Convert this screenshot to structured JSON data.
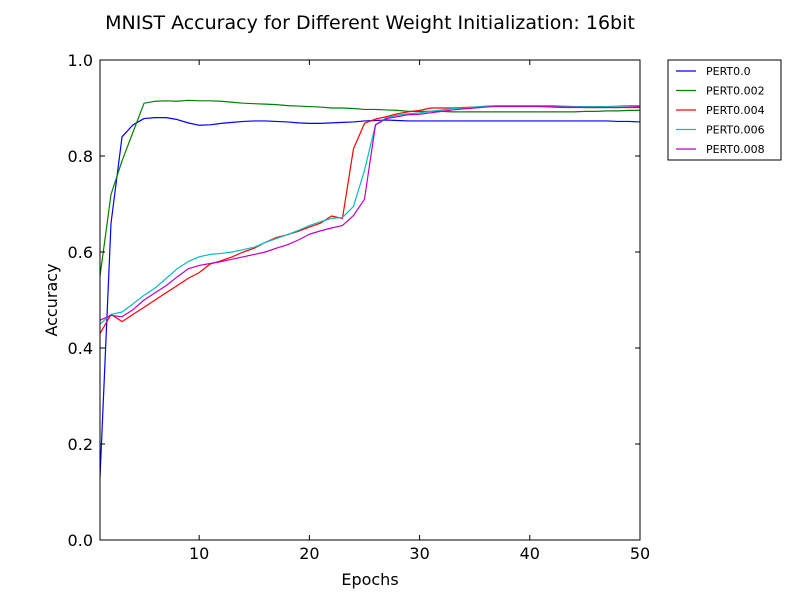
{
  "chart_data": {
    "type": "line",
    "title": "MNIST Accuracy for Different Weight Initialization: 16bit",
    "xlabel": "Epochs",
    "ylabel": "Accuracy",
    "xlim": [
      1,
      50
    ],
    "ylim": [
      0.0,
      1.0
    ],
    "xticks": [
      10,
      20,
      30,
      40,
      50
    ],
    "yticks": [
      "0.0",
      "0.2",
      "0.4",
      "0.6",
      "0.8",
      "1.0"
    ],
    "grid": false,
    "legend_position": "outside-top-right",
    "x": [
      1,
      2,
      3,
      4,
      5,
      6,
      7,
      8,
      9,
      10,
      11,
      12,
      13,
      14,
      15,
      16,
      17,
      18,
      19,
      20,
      21,
      22,
      23,
      24,
      25,
      26,
      27,
      28,
      29,
      30,
      31,
      32,
      33,
      34,
      35,
      36,
      37,
      38,
      39,
      40,
      41,
      42,
      43,
      44,
      45,
      46,
      47,
      48,
      49,
      50
    ],
    "series": [
      {
        "name": "PERT0.0",
        "color": "#0000ff",
        "values": [
          0.13,
          0.66,
          0.84,
          0.865,
          0.878,
          0.88,
          0.88,
          0.876,
          0.869,
          0.864,
          0.865,
          0.868,
          0.87,
          0.872,
          0.873,
          0.873,
          0.872,
          0.871,
          0.869,
          0.868,
          0.868,
          0.869,
          0.87,
          0.871,
          0.873,
          0.874,
          0.875,
          0.874,
          0.873,
          0.873,
          0.873,
          0.873,
          0.873,
          0.873,
          0.873,
          0.873,
          0.873,
          0.873,
          0.873,
          0.873,
          0.873,
          0.873,
          0.873,
          0.873,
          0.873,
          0.873,
          0.873,
          0.872,
          0.872,
          0.871
        ]
      },
      {
        "name": "PERT0.002",
        "color": "#008000",
        "values": [
          0.55,
          0.72,
          0.79,
          0.85,
          0.91,
          0.914,
          0.915,
          0.914,
          0.916,
          0.915,
          0.915,
          0.914,
          0.912,
          0.91,
          0.909,
          0.908,
          0.907,
          0.905,
          0.904,
          0.903,
          0.902,
          0.9,
          0.9,
          0.899,
          0.897,
          0.897,
          0.896,
          0.895,
          0.893,
          0.893,
          0.893,
          0.893,
          0.892,
          0.892,
          0.892,
          0.892,
          0.892,
          0.892,
          0.892,
          0.892,
          0.892,
          0.892,
          0.892,
          0.892,
          0.893,
          0.893,
          0.894,
          0.894,
          0.895,
          0.895
        ]
      },
      {
        "name": "PERT0.004",
        "color": "#ff0000",
        "values": [
          0.43,
          0.47,
          0.455,
          0.47,
          0.485,
          0.5,
          0.515,
          0.53,
          0.545,
          0.557,
          0.575,
          0.582,
          0.59,
          0.6,
          0.608,
          0.62,
          0.63,
          0.636,
          0.643,
          0.652,
          0.66,
          0.675,
          0.67,
          0.815,
          0.868,
          0.877,
          0.882,
          0.888,
          0.892,
          0.895,
          0.9,
          0.9,
          0.9,
          0.901,
          0.902,
          0.903,
          0.904,
          0.905,
          0.905,
          0.904,
          0.903,
          0.902,
          0.901,
          0.901,
          0.901,
          0.901,
          0.901,
          0.901,
          0.901,
          0.901
        ]
      },
      {
        "name": "PERT0.006",
        "color": "#00bfbf",
        "values": [
          0.45,
          0.47,
          0.475,
          0.492,
          0.51,
          0.525,
          0.545,
          0.565,
          0.58,
          0.59,
          0.595,
          0.597,
          0.6,
          0.605,
          0.61,
          0.62,
          0.628,
          0.636,
          0.645,
          0.655,
          0.663,
          0.67,
          0.672,
          0.695,
          0.77,
          0.865,
          0.88,
          0.885,
          0.888,
          0.89,
          0.893,
          0.896,
          0.899,
          0.9,
          0.902,
          0.904,
          0.905,
          0.905,
          0.905,
          0.905,
          0.905,
          0.905,
          0.904,
          0.903,
          0.903,
          0.903,
          0.903,
          0.904,
          0.905,
          0.905
        ]
      },
      {
        "name": "PERT0.008",
        "color": "#bf00bf",
        "values": [
          0.458,
          0.468,
          0.465,
          0.48,
          0.5,
          0.515,
          0.53,
          0.548,
          0.565,
          0.572,
          0.576,
          0.58,
          0.585,
          0.59,
          0.595,
          0.6,
          0.608,
          0.615,
          0.625,
          0.637,
          0.644,
          0.65,
          0.655,
          0.676,
          0.71,
          0.865,
          0.878,
          0.882,
          0.886,
          0.887,
          0.89,
          0.893,
          0.896,
          0.898,
          0.9,
          0.902,
          0.903,
          0.903,
          0.903,
          0.903,
          0.903,
          0.903,
          0.902,
          0.902,
          0.901,
          0.901,
          0.901,
          0.901,
          0.902,
          0.903
        ]
      }
    ]
  }
}
